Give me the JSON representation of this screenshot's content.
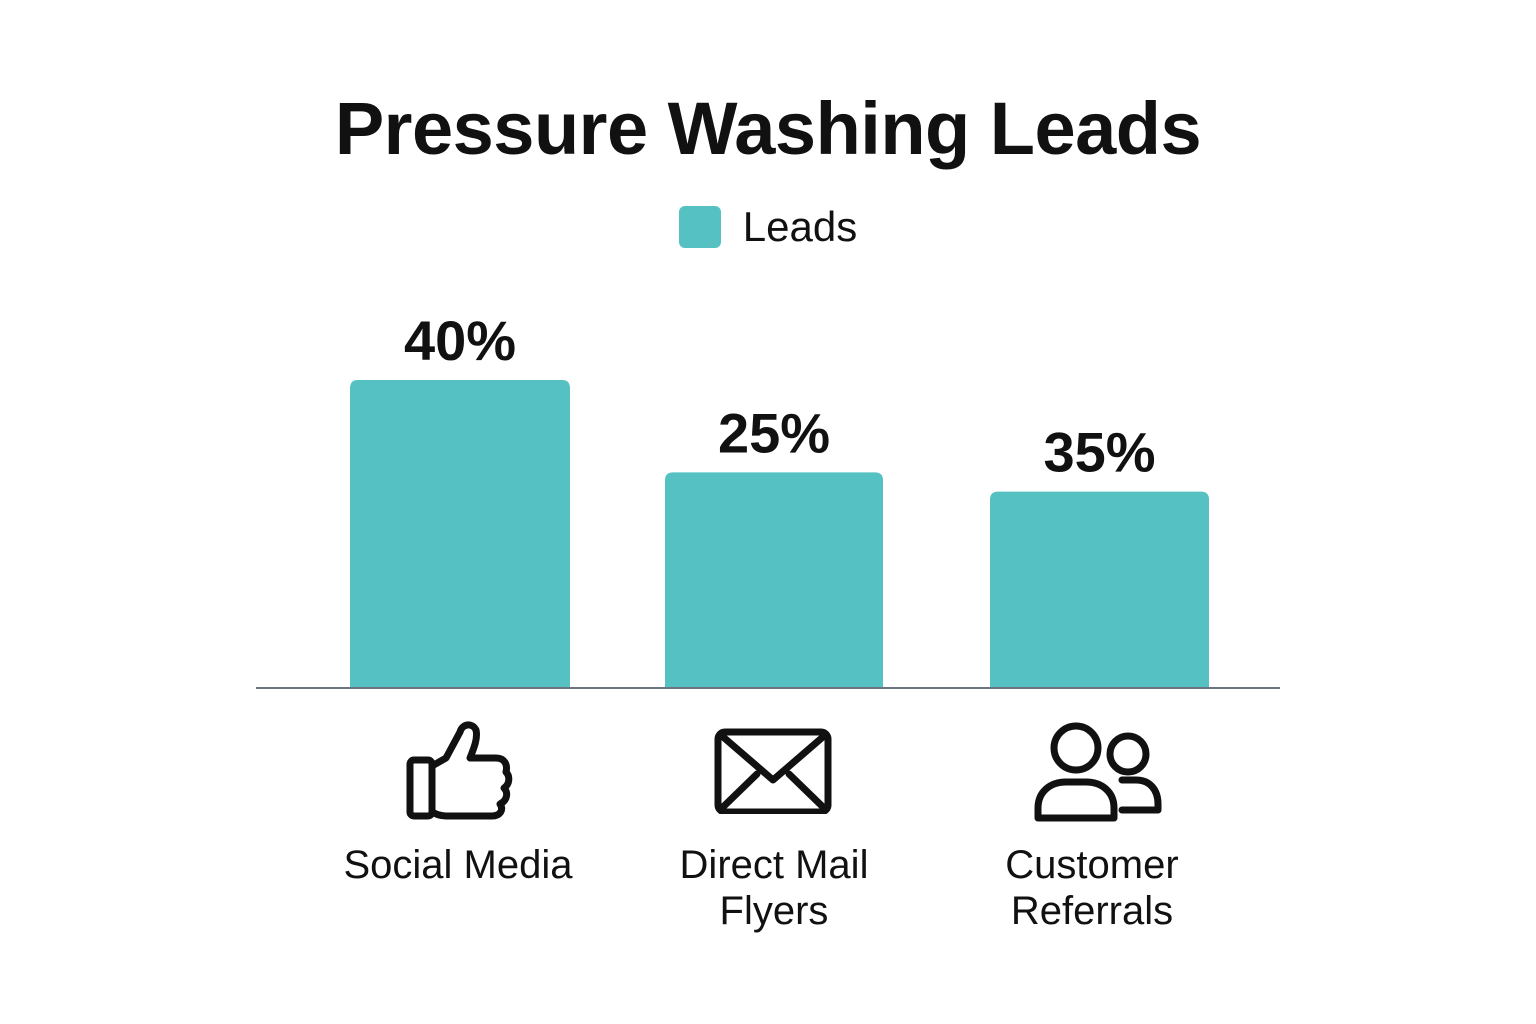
{
  "accent_color": "#55C1C3",
  "axis_color": "#6B7480",
  "chart_data": {
    "type": "bar",
    "title": "Pressure Washing Leads",
    "xlabel": "",
    "ylabel": "",
    "categories": [
      "Social Media",
      "Direct Mail\nFlyers",
      "Customer\nReferrals"
    ],
    "series": [
      {
        "name": "Leads",
        "values": [
          40,
          25,
          35
        ],
        "color": "#55C1C3"
      }
    ],
    "data_labels": [
      "40%",
      "25%",
      "35%"
    ],
    "bar_heights_shown_pct": [
      40,
      28,
      25.5
    ],
    "ylim": [
      0,
      40
    ],
    "grid": false,
    "legend_position": "top-center",
    "category_icons": [
      "thumbs-up-icon",
      "envelope-icon",
      "users-icon"
    ]
  }
}
